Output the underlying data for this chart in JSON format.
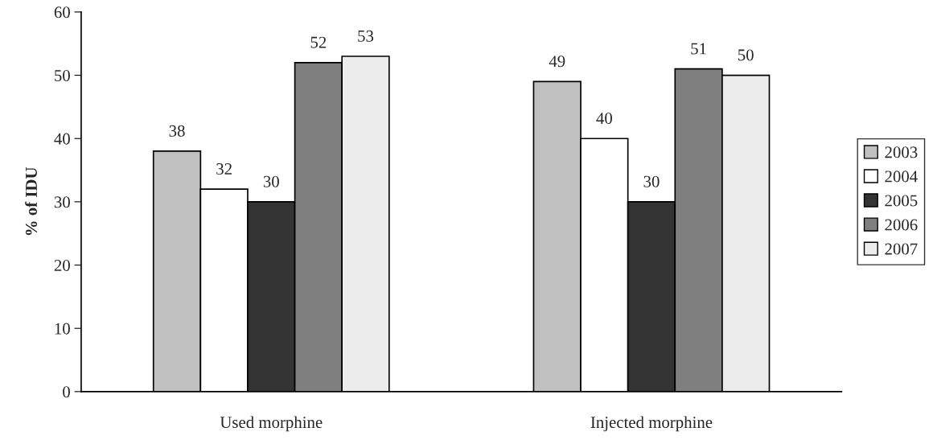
{
  "chart_data": {
    "type": "bar",
    "ylabel": "% of IDU",
    "categories": [
      "Used morphine",
      "Injected morphine"
    ],
    "series": [
      {
        "name": "2003",
        "color": "#c0c0c0",
        "values": [
          38,
          49
        ]
      },
      {
        "name": "2004",
        "color": "#ffffff",
        "values": [
          32,
          40
        ]
      },
      {
        "name": "2005",
        "color": "#333333",
        "values": [
          30,
          30
        ]
      },
      {
        "name": "2006",
        "color": "#7f7f7f",
        "values": [
          52,
          51
        ]
      },
      {
        "name": "2007",
        "color": "#ececec",
        "values": [
          53,
          50
        ]
      }
    ],
    "ylim": [
      0,
      60
    ],
    "yticks": [
      0,
      10,
      20,
      30,
      40,
      50,
      60
    ],
    "data_labels": true,
    "legend": "right",
    "grid": false
  }
}
